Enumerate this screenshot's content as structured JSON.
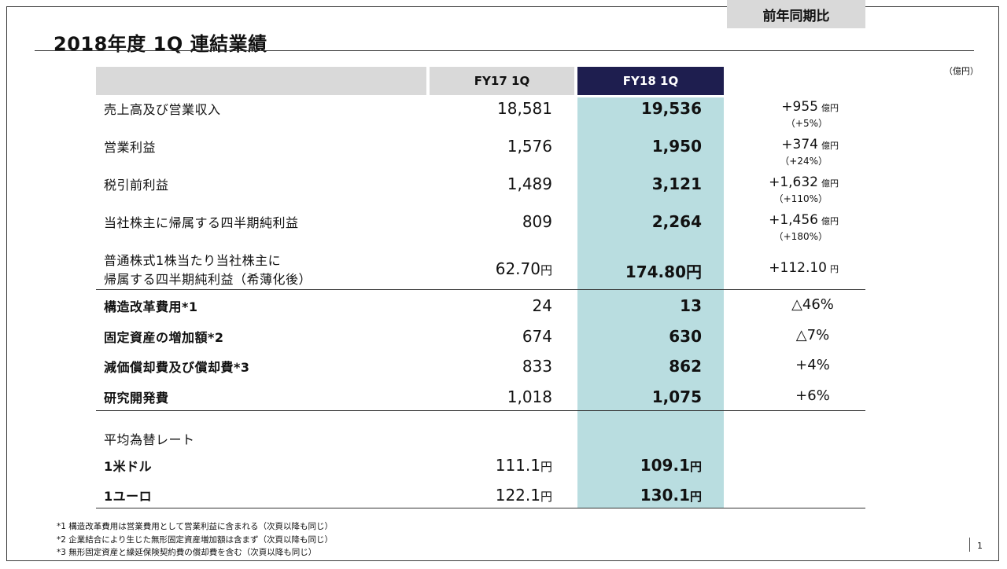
{
  "title": "2018年度 1Q 連結業績",
  "unit": "（億円）",
  "headers": {
    "fy17": "FY17 1Q",
    "fy18": "FY18 1Q",
    "ratio": "前年同期比"
  },
  "rows": [
    {
      "label": "売上高及び営業収入",
      "fy17": "18,581",
      "fy18": "19,536",
      "change": "+955",
      "change_unit": "億円",
      "pct": "（+5%）"
    },
    {
      "label": "営業利益",
      "fy17": "1,576",
      "fy18": "1,950",
      "change": "+374",
      "change_unit": "億円",
      "pct": "（+24%）"
    },
    {
      "label": "税引前利益",
      "fy17": "1,489",
      "fy18": "3,121",
      "change": "+1,632",
      "change_unit": "億円",
      "pct": "（+110%）"
    },
    {
      "label": "当社株主に帰属する四半期純利益",
      "fy17": "809",
      "fy18": "2,264",
      "change": "+1,456",
      "change_unit": "億円",
      "pct": "（+180%）"
    },
    {
      "label_line1": "普通株式1株当たり当社株主に",
      "label_line2": "帰属する四半期純利益（希薄化後）",
      "fy17": "62.70",
      "fy18": "174.80",
      "yen": "円",
      "change": "+112.10",
      "change_unit": "円"
    }
  ],
  "rows2": [
    {
      "label": "構造改革費用*1",
      "fy17": "24",
      "fy18": "13",
      "change": "△46%"
    },
    {
      "label": "固定資産の増加額*2",
      "fy17": "674",
      "fy18": "630",
      "change": "△7%"
    },
    {
      "label": "減価償却費及び償却費*3",
      "fy17": "833",
      "fy18": "862",
      "change": "+4%"
    },
    {
      "label": "研究開発費",
      "fy17": "1,018",
      "fy18": "1,075",
      "change": "+6%"
    }
  ],
  "fx": {
    "heading": "平均為替レート",
    "usd": {
      "label": "1米ドル",
      "fy17": "111.1",
      "fy18": "109.1",
      "yen": "円"
    },
    "eur": {
      "label": "1ユーロ",
      "fy17": "122.1",
      "fy18": "130.1",
      "yen": "円"
    }
  },
  "footnotes": [
    "*1 構造改革費用は営業費用として営業利益に含まれる（次頁以降も同じ）",
    "*2 企業結合により生じた無形固定資産増加額は含まず（次頁以降も同じ）",
    "*3 無形固定資産と繰延保険契約費の償却費を含む（次頁以降も同じ）"
  ],
  "page_number": "1"
}
